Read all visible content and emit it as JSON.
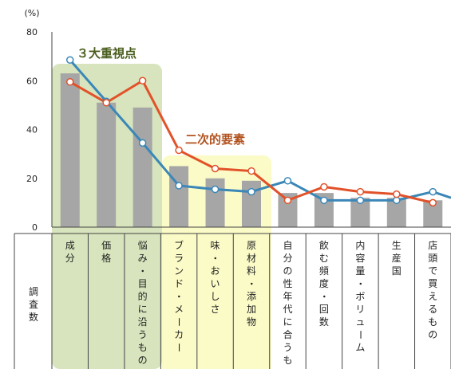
{
  "chart_data": {
    "type": "bar+line",
    "y_unit": "(%)",
    "ylim": [
      0,
      80
    ],
    "yticks": [
      0,
      20,
      40,
      60,
      80
    ],
    "categories": [
      "成分",
      "価格",
      "悩み・目的に沿うもの",
      "ブランド・メーカー",
      "味・おいしさ",
      "原材料・添加物",
      "自分の性年代に合うもの",
      "飲む頻度・回数",
      "内容量・ボリューム",
      "生産国",
      "店頭で買えるもの"
    ],
    "row_header": "調査数",
    "series": [
      {
        "type": "bar",
        "color": "#a6a6a6",
        "values": [
          63,
          51,
          49,
          25,
          20,
          19,
          14,
          14,
          12,
          12,
          11
        ]
      },
      {
        "type": "line",
        "color": "#3a87b8",
        "values": [
          68.5,
          51.5,
          34.5,
          17,
          15.5,
          14.5,
          19,
          11,
          11,
          11,
          14.5
        ]
      },
      {
        "type": "line",
        "color": "#e2522a",
        "values": [
          59.5,
          51,
          60,
          31.5,
          24,
          23,
          11,
          16.5,
          14.5,
          13.5,
          10
        ]
      }
    ],
    "extra_point": {
      "series": 1,
      "value": 12,
      "position": "right-edge"
    },
    "annotations": [
      {
        "text": "３大重視点",
        "color": "#4a5e1e",
        "group": [
          0,
          2
        ],
        "highlight": "#d7e4bd"
      },
      {
        "text": "二次的要素",
        "color": "#b2521f",
        "group": [
          3,
          5
        ],
        "highlight": "#fbfbc8"
      }
    ]
  }
}
